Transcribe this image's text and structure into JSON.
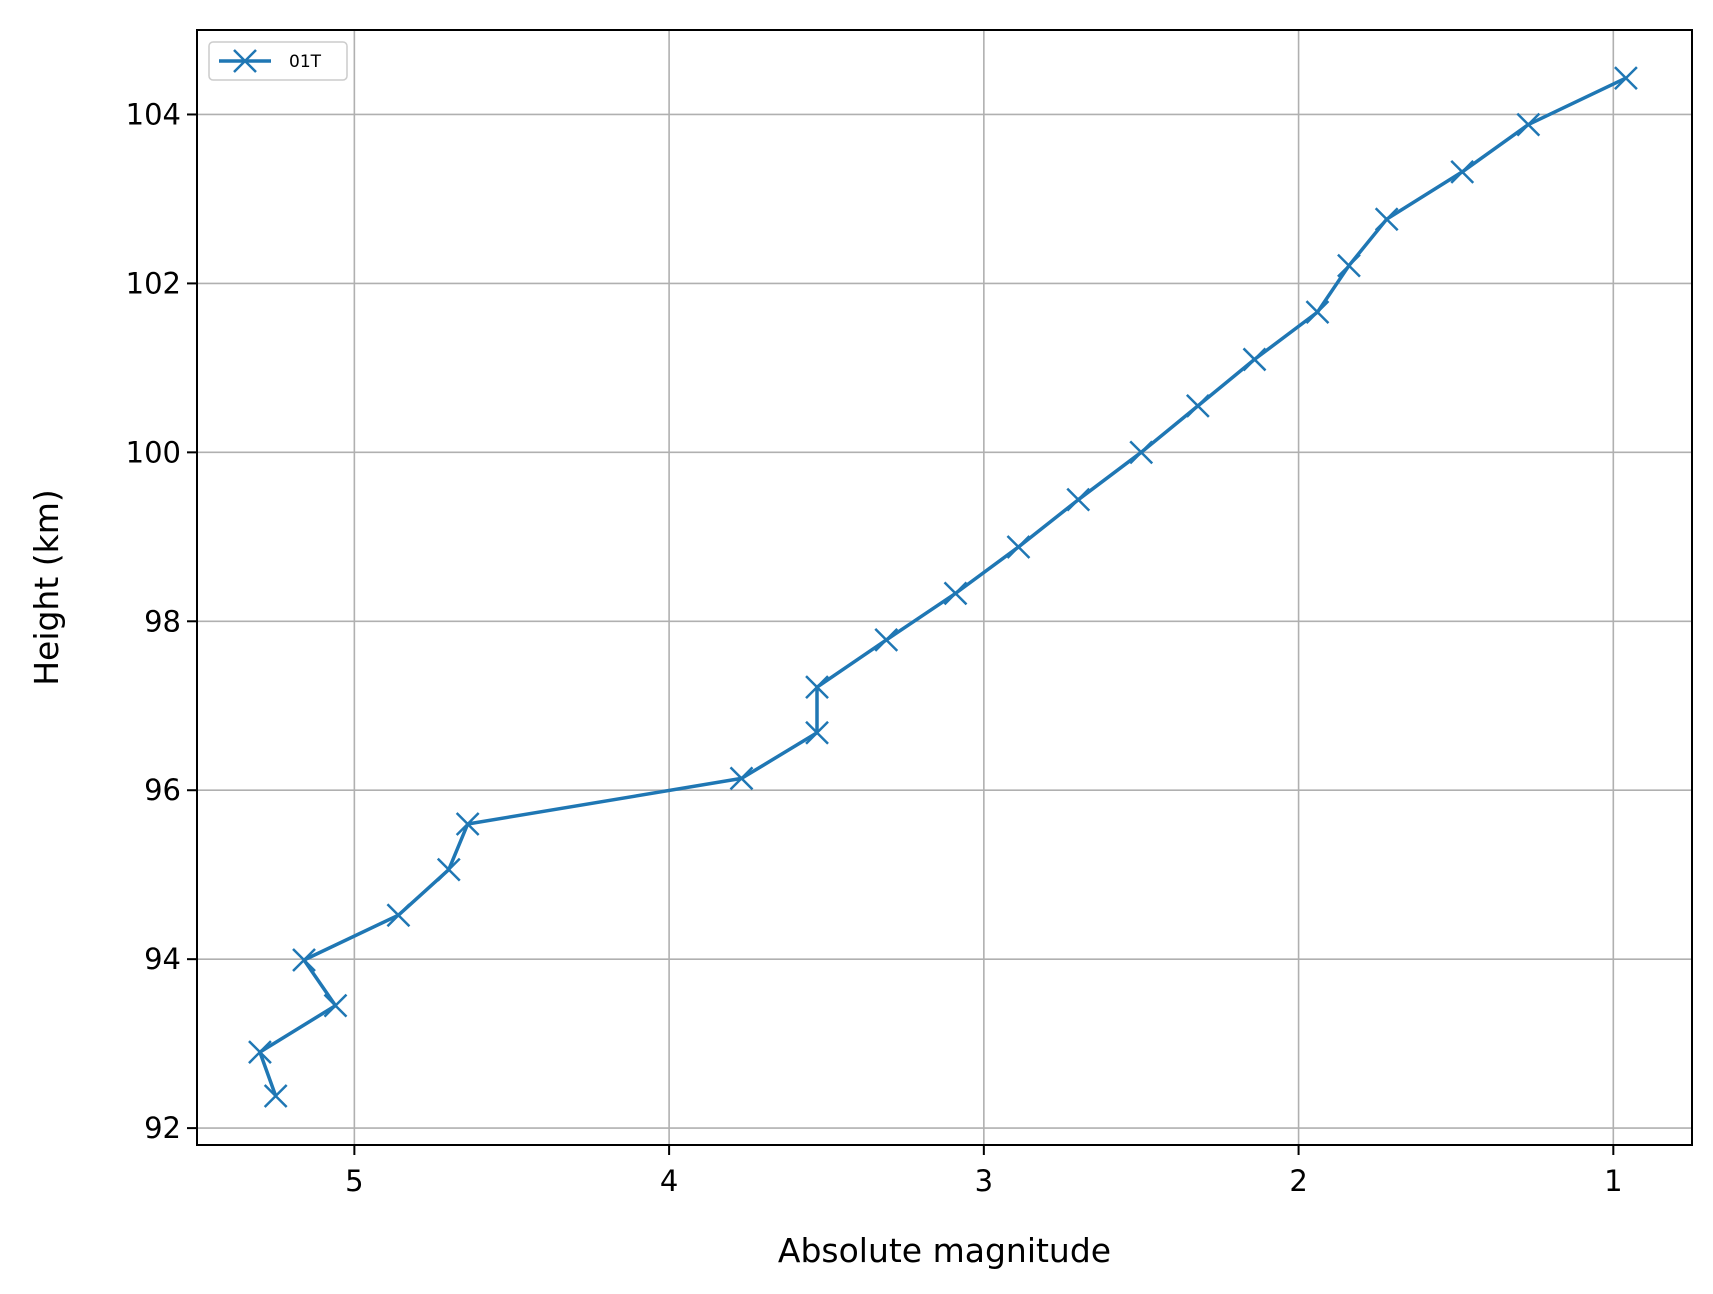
{
  "chart_data": {
    "type": "line",
    "xlabel": "Absolute magnitude",
    "ylabel": "Height (km)",
    "xlim": [
      5.5,
      0.75
    ],
    "ylim": [
      91.8,
      105.0
    ],
    "x_inverted": true,
    "grid": true,
    "legend_position": "top-left",
    "x_ticks": [
      5,
      4,
      3,
      2,
      1
    ],
    "y_ticks": [
      92,
      94,
      96,
      98,
      100,
      102,
      104
    ],
    "series": [
      {
        "name": "01T",
        "color": "#1f77b4",
        "marker": "x",
        "points": [
          {
            "x": 5.25,
            "y": 92.38
          },
          {
            "x": 5.3,
            "y": 92.9
          },
          {
            "x": 5.06,
            "y": 93.45
          },
          {
            "x": 5.16,
            "y": 93.99
          },
          {
            "x": 4.86,
            "y": 94.52
          },
          {
            "x": 4.7,
            "y": 95.06
          },
          {
            "x": 4.64,
            "y": 95.6
          },
          {
            "x": 3.77,
            "y": 96.14
          },
          {
            "x": 3.53,
            "y": 96.68
          },
          {
            "x": 3.53,
            "y": 97.22
          },
          {
            "x": 3.31,
            "y": 97.78
          },
          {
            "x": 3.09,
            "y": 98.33
          },
          {
            "x": 2.89,
            "y": 98.88
          },
          {
            "x": 2.7,
            "y": 99.44
          },
          {
            "x": 2.5,
            "y": 100.0
          },
          {
            "x": 2.32,
            "y": 100.55
          },
          {
            "x": 2.14,
            "y": 101.1
          },
          {
            "x": 1.94,
            "y": 101.66
          },
          {
            "x": 1.84,
            "y": 102.21
          },
          {
            "x": 1.72,
            "y": 102.76
          },
          {
            "x": 1.48,
            "y": 103.32
          },
          {
            "x": 1.27,
            "y": 103.88
          },
          {
            "x": 0.96,
            "y": 104.43
          }
        ]
      }
    ]
  }
}
